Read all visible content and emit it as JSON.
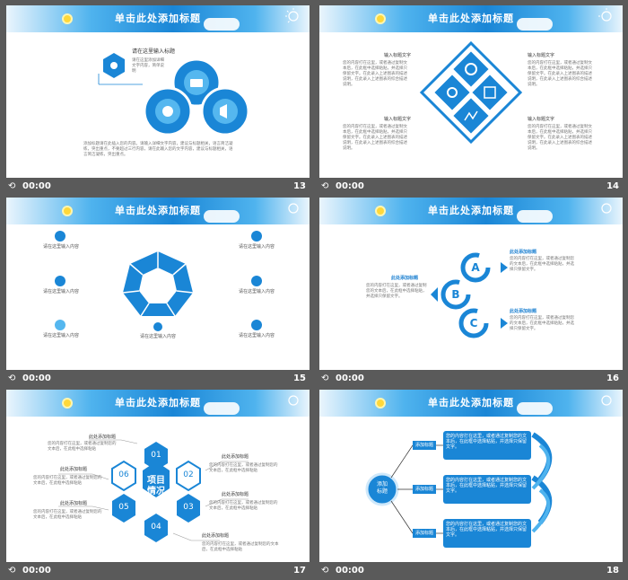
{
  "slide_title": "单击此处添加标题",
  "footer_time": "00:00",
  "slides": [
    {
      "number": "13",
      "heading": "请在这里输入标题",
      "side_text": "请在这里添加详细文字内容，简单说明",
      "body": "添加标题请在此插入您的内容。请输入详细文字内容，建议与标题相关，语言简洁凝练，突出重点，不要超过三行内容，请在此输入您的文字内容，建议与标题相关，语言简洁凝练，突出重点。"
    },
    {
      "number": "14",
      "label_tl": "输入标题文字",
      "label_tr": "输入标题文字",
      "label_bl": "输入标题文字",
      "label_br": "输入标题文字",
      "para": "您的内容打在这里，或者通过复制文本后，在此框中选择粘贴，并选择只保留文字。在此录入上述图表的描述说明，在此录入上述图表的综合描述说明。"
    },
    {
      "number": "15",
      "items": [
        "请在这里输入内容",
        "请在这里输入内容",
        "请在这里输入内容",
        "请在这里输入内容",
        "请在这里输入内容",
        "请在这里输入内容",
        "请在这里输入内容"
      ]
    },
    {
      "number": "16",
      "title_a": "此处添加标题",
      "title_b": "此处添加标题",
      "title_c": "此处添加标题",
      "para": "您的内容打在这里，或者通过复制您的文本后，在此框中选择粘贴，并选择只保留文字。",
      "letters": [
        "A",
        "B",
        "C"
      ]
    },
    {
      "number": "17",
      "center": "项目\n情况",
      "hexes": [
        "01",
        "02",
        "03",
        "04",
        "05",
        "06"
      ],
      "title": "此处添加标题",
      "para": "您的内容打在这里，或者通过复制您的文本后，在此框中选择粘贴"
    },
    {
      "number": "18",
      "center": "添加\n标题",
      "label": "添加标题",
      "para": "您的内容打在这里，或者通过复制您的文本后，在此框中选择粘贴，并选择只保留文字。"
    }
  ],
  "colors": {
    "primary": "#1a86d6",
    "light": "#4fb3ee",
    "dark_bg": "#5a5a5a"
  }
}
